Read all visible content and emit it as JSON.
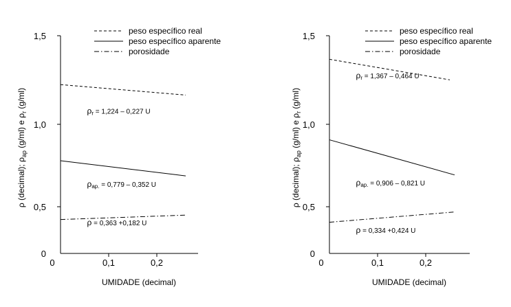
{
  "chart_data": [
    {
      "type": "line",
      "xlabel": "UMIDADE (decimal)",
      "ylabel": {
        "p1": "ρ (decimal); ρ",
        "sub1": "ap",
        "p2": " (g/ml) e ρ",
        "sub2": "r",
        "p3": " (g/ml)"
      },
      "xlim": [
        0,
        0.3
      ],
      "ylim": [
        0,
        1.6
      ],
      "x_ticks": [
        0,
        0.1,
        0.2
      ],
      "x_tick_labels": [
        "0",
        "0,1",
        "0,2"
      ],
      "y_ticks": [
        0,
        0.5,
        1.0,
        1.5
      ],
      "y_tick_labels": [
        "0",
        "0,5",
        "1,0",
        "1,5"
      ],
      "legend_position": "top-right",
      "series": [
        {
          "name": "peso específico real",
          "style": "dashed",
          "x": [
            0.0,
            0.26
          ],
          "y": [
            1.224,
            1.165
          ],
          "equation": {
            "sym": "ρ",
            "sub": "r",
            "text": " = 1,224 – 0,227 U"
          },
          "label_at": [
            0.055,
            1.06
          ]
        },
        {
          "name": "peso específico aparente",
          "style": "solid",
          "x": [
            0.0,
            0.26
          ],
          "y": [
            0.779,
            0.687
          ],
          "equation": {
            "sym": "ρ",
            "sub": "ap.",
            "text": " = 0,779 – 0,352 U"
          },
          "label_at": [
            0.055,
            0.62
          ]
        },
        {
          "name": "porosidade",
          "style": "dashdot",
          "x": [
            0.0,
            0.26
          ],
          "y": [
            0.363,
            0.41
          ],
          "equation": {
            "sym": "ρ",
            "sub": "",
            "text": " = 0,363 +0,182 U"
          },
          "label_at": [
            0.055,
            0.3
          ]
        }
      ]
    },
    {
      "type": "line",
      "xlabel": "UMIDADE (decimal)",
      "ylabel": {
        "p1": "ρ (decimal); ρ",
        "sub1": "ap",
        "p2": " (g/ml) e ρ",
        "sub2": "r",
        "p3": " (g/ml)"
      },
      "xlim": [
        0,
        0.3
      ],
      "ylim": [
        0,
        1.6
      ],
      "x_ticks": [
        0,
        0.1,
        0.2
      ],
      "x_tick_labels": [
        "0",
        "0,1",
        "0,2"
      ],
      "y_ticks": [
        0,
        0.5,
        1.0,
        1.5
      ],
      "y_tick_labels": [
        "0",
        "0,5",
        "1,0",
        "1,5"
      ],
      "legend_position": "top-right",
      "series": [
        {
          "name": "peso específico real",
          "style": "dashed",
          "x": [
            0.0,
            0.25
          ],
          "y": [
            1.367,
            1.251
          ],
          "equation": {
            "sym": "ρ",
            "sub": "r",
            "text": " = 1,367 – 0,464 U"
          },
          "label_at": [
            0.055,
            1.26
          ]
        },
        {
          "name": "peso específico aparente",
          "style": "solid",
          "x": [
            0.0,
            0.26
          ],
          "y": [
            0.906,
            0.693
          ],
          "equation": {
            "sym": "ρ",
            "sub": "ap.",
            "text": " = 0,906 – 0,821 U"
          },
          "label_at": [
            0.055,
            0.63
          ]
        },
        {
          "name": "porosidade",
          "style": "dashdot",
          "x": [
            0.0,
            0.26
          ],
          "y": [
            0.334,
            0.444
          ],
          "equation": {
            "sym": "ρ",
            "sub": "",
            "text": " = 0,334 +0,424 U"
          },
          "label_at": [
            0.055,
            0.22
          ]
        }
      ]
    }
  ]
}
